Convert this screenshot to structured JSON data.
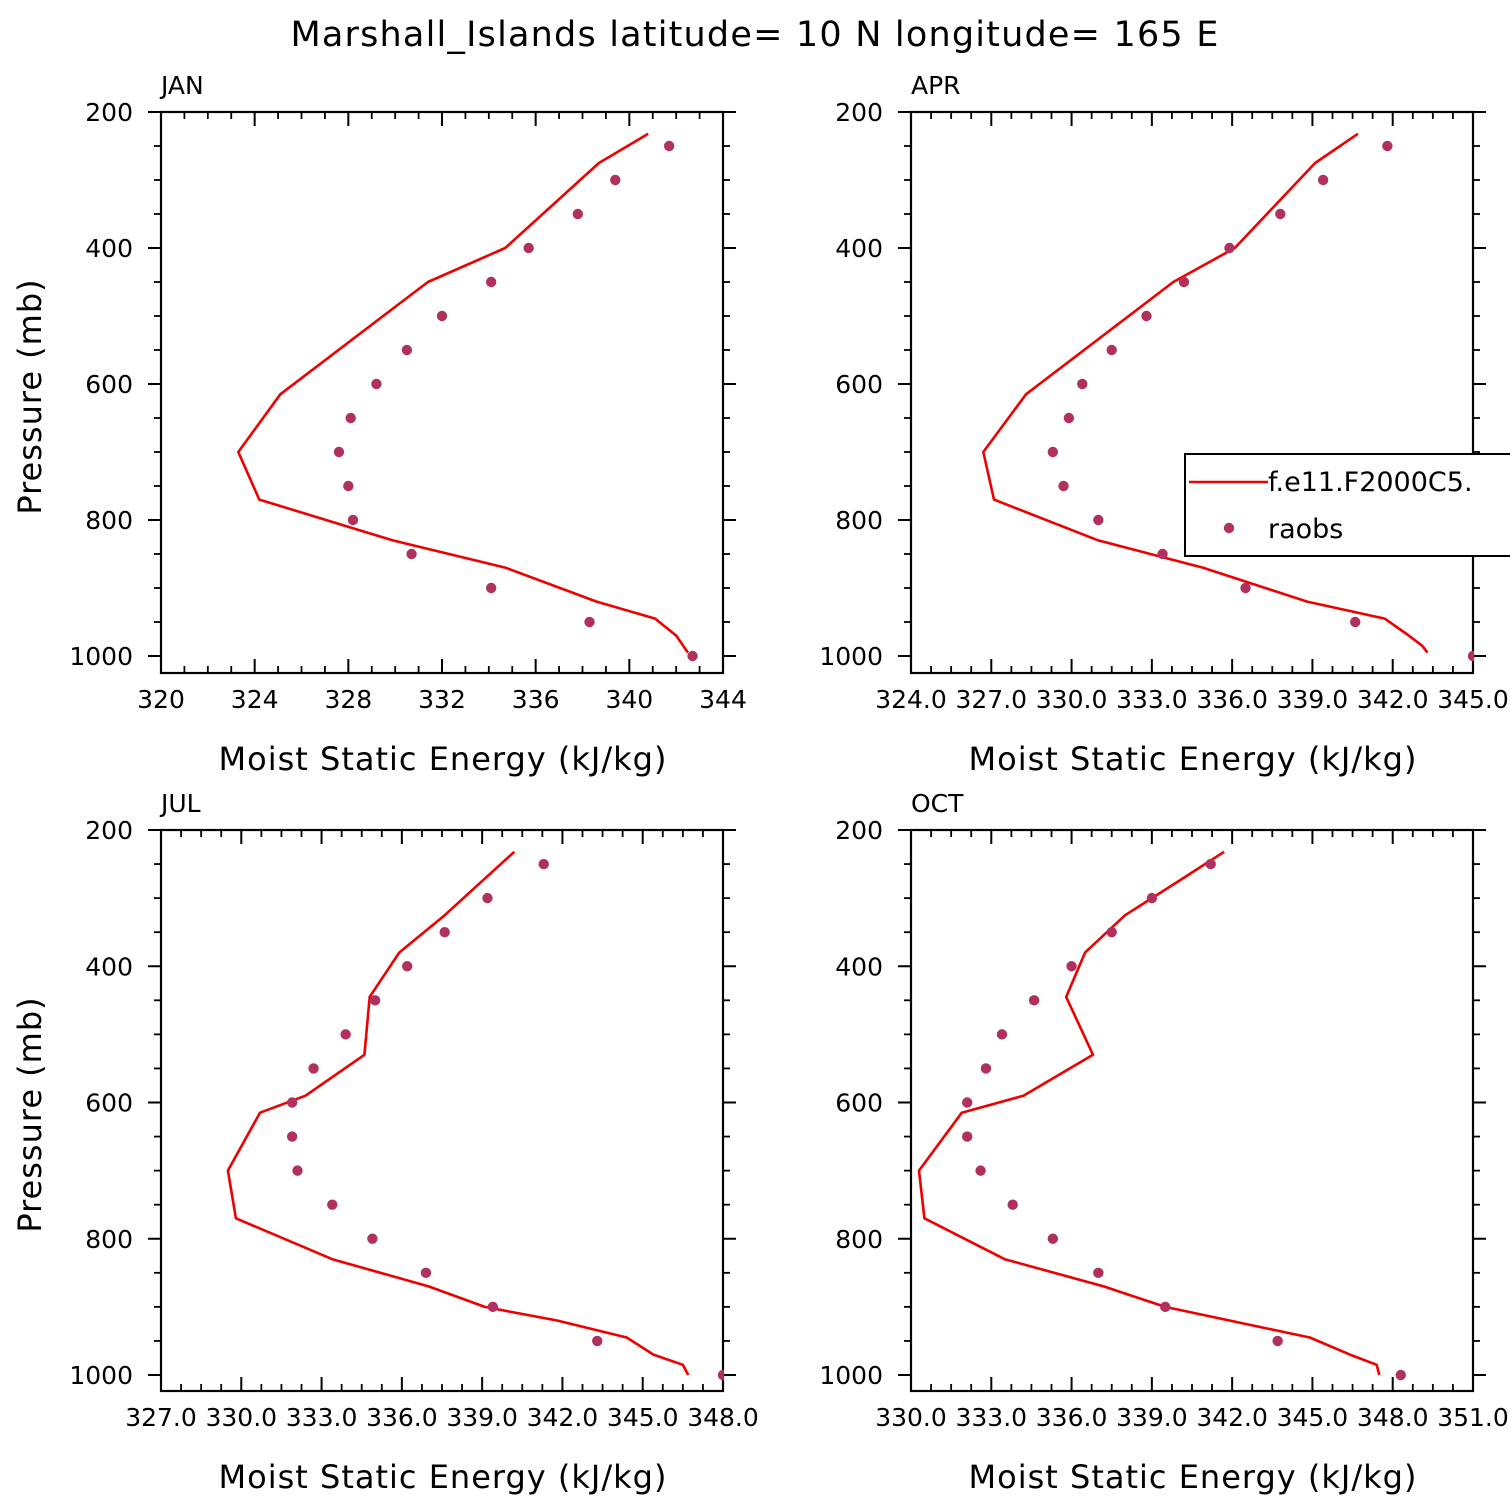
{
  "title": "Marshall_Islands  latitude= 10 N longitude= 165 E",
  "legend": {
    "items": [
      {
        "label": "f.e11.F2000C5.",
        "kind": "line",
        "color": "#ee0000"
      },
      {
        "label": "raobs",
        "kind": "marker",
        "color": "#b03060"
      }
    ]
  },
  "colors": {
    "model_line": "#ee0000",
    "obs_marker": "#b03060"
  },
  "chart_data": [
    {
      "type": "line",
      "panel": "JAN",
      "xlabel": "Moist Static Energy (kJ/kg)",
      "ylabel": "Pressure (mb)",
      "xlim": [
        320,
        344
      ],
      "ylim": [
        200,
        1025
      ],
      "y_reversed": true,
      "xticks": [
        320,
        324,
        328,
        332,
        336,
        340,
        344
      ],
      "xtick_labels": [
        "320",
        "324",
        "328",
        "332",
        "336",
        "340",
        "344"
      ],
      "yticks": [
        200,
        400,
        600,
        800,
        1000
      ],
      "ytick_labels": [
        "200",
        "400",
        "600",
        "800",
        "1000"
      ],
      "series": [
        {
          "name": "f.e11.F2000C5.",
          "kind": "line",
          "x": [
            340.8,
            338.7,
            334.7,
            331.4,
            325.1,
            323.3,
            324.2,
            329.9,
            334.7,
            338.6,
            341.1,
            342.0,
            342.3,
            342.5
          ],
          "y": [
            232,
            275,
            400,
            450,
            615,
            700,
            770,
            830,
            870,
            920,
            945,
            970,
            985,
            995
          ]
        },
        {
          "name": "raobs",
          "kind": "marker",
          "x": [
            341.7,
            339.4,
            337.8,
            335.7,
            334.1,
            332.0,
            330.5,
            329.2,
            328.1,
            327.6,
            328.0,
            328.2,
            330.7,
            334.1,
            338.3,
            342.7
          ],
          "y": [
            250,
            300,
            350,
            400,
            450,
            500,
            550,
            600,
            650,
            700,
            750,
            800,
            850,
            900,
            950,
            1000
          ]
        }
      ]
    },
    {
      "type": "line",
      "panel": "APR",
      "xlabel": "Moist Static Energy (kJ/kg)",
      "ylabel": "",
      "xlim": [
        324,
        345
      ],
      "ylim": [
        200,
        1025
      ],
      "y_reversed": true,
      "xticks": [
        324,
        327,
        330,
        333,
        336,
        339,
        342,
        345
      ],
      "xtick_labels": [
        "324.0",
        "327.0",
        "330.0",
        "333.0",
        "336.0",
        "339.0",
        "342.0",
        "345.0"
      ],
      "yticks": [
        200,
        400,
        600,
        800,
        1000
      ],
      "ytick_labels": [
        "200",
        "400",
        "600",
        "800",
        "1000"
      ],
      "series": [
        {
          "name": "f.e11.F2000C5.",
          "kind": "line",
          "x": [
            340.7,
            339.1,
            336.1,
            333.8,
            328.3,
            326.7,
            327.1,
            331.0,
            334.9,
            338.8,
            341.7,
            342.6,
            343.1,
            343.3
          ],
          "y": [
            232,
            275,
            400,
            450,
            615,
            700,
            770,
            830,
            870,
            920,
            945,
            970,
            985,
            995
          ]
        },
        {
          "name": "raobs",
          "kind": "marker",
          "x": [
            341.8,
            339.4,
            337.8,
            335.9,
            334.2,
            332.8,
            331.5,
            330.4,
            329.9,
            329.3,
            329.7,
            331.0,
            333.4,
            336.5,
            340.6,
            345.0
          ],
          "y": [
            250,
            300,
            350,
            400,
            450,
            500,
            550,
            600,
            650,
            700,
            750,
            800,
            850,
            900,
            950,
            1000
          ]
        }
      ]
    },
    {
      "type": "line",
      "panel": "JUL",
      "xlabel": "Moist Static Energy (kJ/kg)",
      "ylabel": "Pressure (mb)",
      "xlim": [
        327,
        348
      ],
      "ylim": [
        200,
        1025
      ],
      "y_reversed": true,
      "xticks": [
        327,
        330,
        333,
        336,
        339,
        342,
        345,
        348
      ],
      "xtick_labels": [
        "327.0",
        "330.0",
        "333.0",
        "336.0",
        "339.0",
        "342.0",
        "345.0",
        "348.0"
      ],
      "yticks": [
        200,
        400,
        600,
        800,
        1000
      ],
      "ytick_labels": [
        "200",
        "400",
        "600",
        "800",
        "1000"
      ],
      "series": [
        {
          "name": "f.e11.F2000C5.",
          "kind": "line",
          "x": [
            340.2,
            339.0,
            337.6,
            335.9,
            334.8,
            334.6,
            332.4,
            330.7,
            329.5,
            329.8,
            333.4,
            337.0,
            339.1,
            341.8,
            344.4,
            345.4,
            346.5,
            346.7
          ],
          "y": [
            232,
            275,
            325,
            380,
            445,
            530,
            590,
            615,
            700,
            770,
            830,
            870,
            900,
            920,
            945,
            970,
            985,
            1000
          ]
        },
        {
          "name": "raobs",
          "kind": "marker",
          "x": [
            341.3,
            339.2,
            337.6,
            336.2,
            335.0,
            333.9,
            332.7,
            331.9,
            331.9,
            332.1,
            333.4,
            334.9,
            336.9,
            339.4,
            343.3,
            348.0
          ],
          "y": [
            250,
            300,
            350,
            400,
            450,
            500,
            550,
            600,
            650,
            700,
            750,
            800,
            850,
            900,
            950,
            1000
          ]
        }
      ]
    },
    {
      "type": "line",
      "panel": "OCT",
      "xlabel": "Moist Static Energy (kJ/kg)",
      "ylabel": "",
      "xlim": [
        330,
        351
      ],
      "ylim": [
        200,
        1025
      ],
      "y_reversed": true,
      "xticks": [
        330,
        333,
        336,
        339,
        342,
        345,
        348,
        351
      ],
      "xtick_labels": [
        "330.0",
        "333.0",
        "336.0",
        "339.0",
        "342.0",
        "345.0",
        "348.0",
        "351.0"
      ],
      "yticks": [
        200,
        400,
        600,
        800,
        1000
      ],
      "ytick_labels": [
        "200",
        "400",
        "600",
        "800",
        "1000"
      ],
      "series": [
        {
          "name": "f.e11.F2000C5.",
          "kind": "line",
          "x": [
            341.7,
            340.0,
            338.0,
            336.5,
            335.8,
            336.8,
            334.2,
            331.9,
            330.3,
            330.5,
            333.5,
            337.2,
            339.5,
            341.9,
            344.9,
            346.4,
            347.4,
            347.5
          ],
          "y": [
            232,
            275,
            325,
            380,
            445,
            530,
            590,
            615,
            700,
            770,
            830,
            870,
            900,
            920,
            945,
            970,
            985,
            1000
          ]
        },
        {
          "name": "raobs",
          "kind": "marker",
          "x": [
            341.2,
            339.0,
            337.5,
            336.0,
            334.6,
            333.4,
            332.8,
            332.1,
            332.1,
            332.6,
            333.8,
            335.3,
            337.0,
            339.5,
            343.7,
            348.3
          ],
          "y": [
            250,
            300,
            350,
            400,
            450,
            500,
            550,
            600,
            650,
            700,
            750,
            800,
            850,
            900,
            950,
            1000
          ]
        }
      ]
    }
  ]
}
